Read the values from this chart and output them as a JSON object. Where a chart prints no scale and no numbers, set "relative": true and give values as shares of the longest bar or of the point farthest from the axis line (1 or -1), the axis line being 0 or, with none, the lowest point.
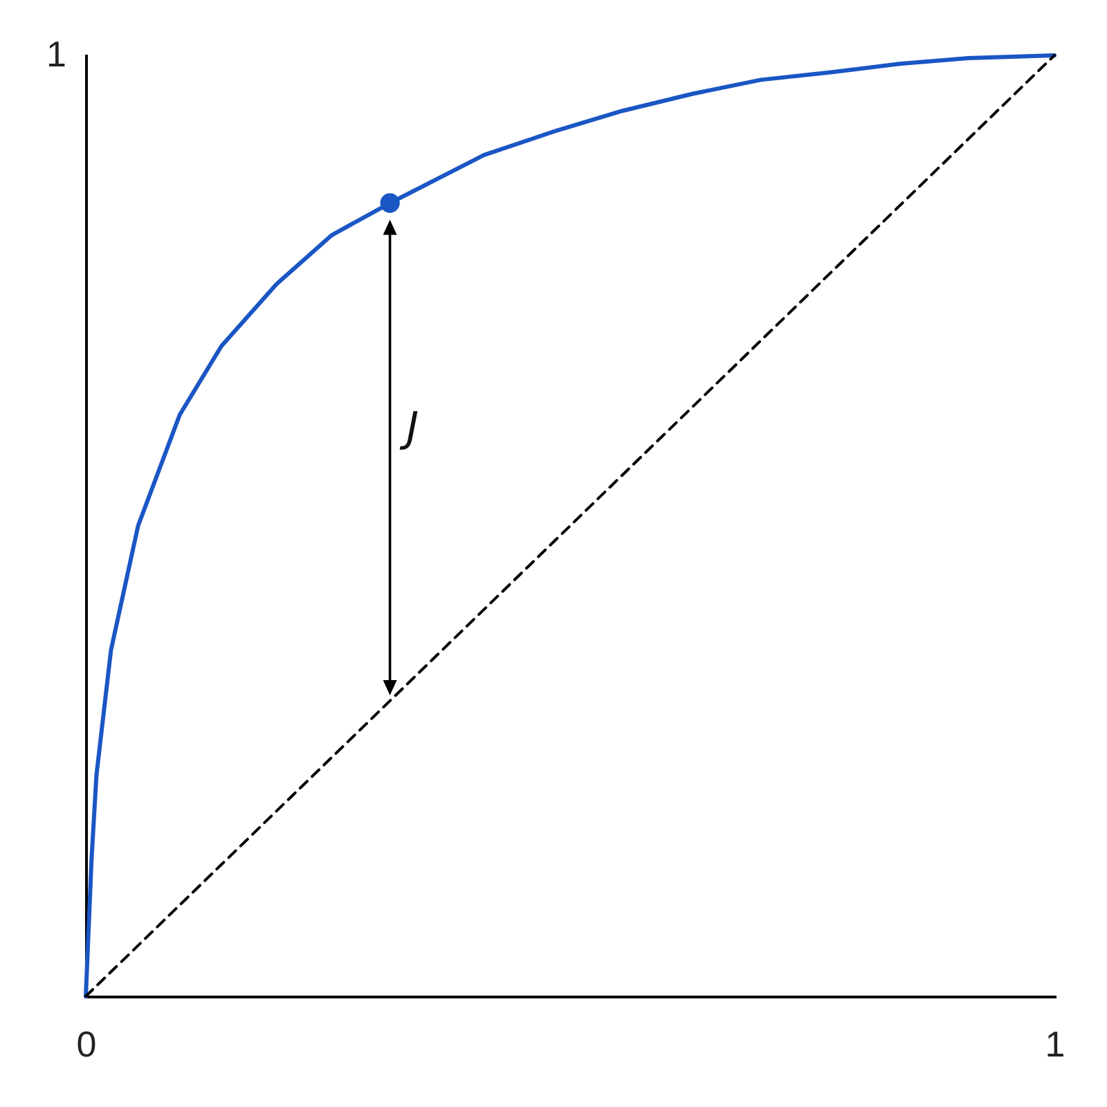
{
  "chart_data": {
    "type": "line",
    "xlim": [
      0,
      1
    ],
    "relative": true,
    "xticks": [
      0,
      1
    ],
    "grid": false,
    "marker": "none",
    "series": [
      {
        "color": "#1a56c4",
        "line_style": "solid",
        "x": [
          0,
          0.006,
          0.011,
          0.026,
          0.054,
          0.097,
          0.14,
          0.197,
          0.254,
          0.314,
          0.411,
          0.483,
          0.554,
          0.626,
          0.697,
          0.769,
          0.84,
          0.911,
          1
        ],
        "values": [
          0,
          0.147,
          0.235,
          0.368,
          0.5,
          0.618,
          0.691,
          0.757,
          0.809,
          0.843,
          0.894,
          0.919,
          0.941,
          0.959,
          0.974,
          0.982,
          0.991,
          0.997,
          1
        ]
      },
      {
        "color": "#000000",
        "line_style": "dashed",
        "x": [
          0,
          1
        ],
        "values": [
          0,
          1
        ]
      },
      {
        "type": "scatter",
        "color": "#1a56c4",
        "marker": "circle",
        "x": [
          0.314
        ],
        "values": [
          0.843
        ]
      }
    ],
    "annotations": [
      "1",
      "J"
    ]
  }
}
